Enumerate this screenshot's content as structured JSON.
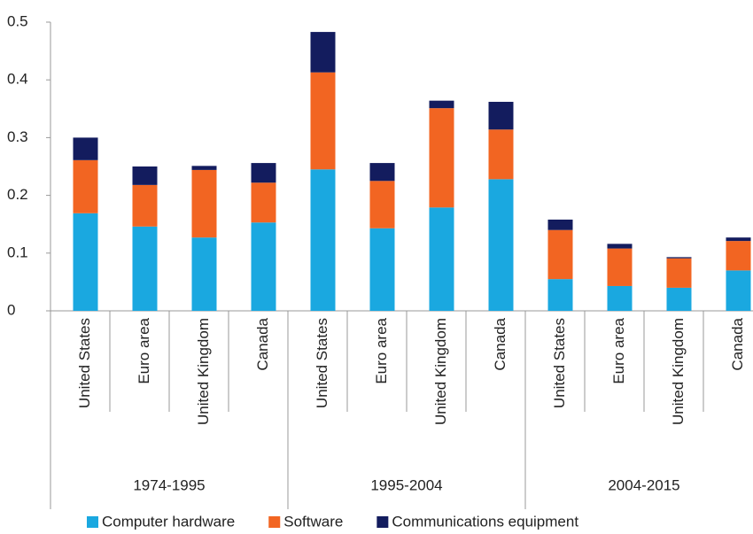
{
  "chart_data": {
    "type": "stacked-bar",
    "categories": [
      "United States",
      "Euro area",
      "United Kingdom",
      "Canada",
      "United States",
      "Euro area",
      "United Kingdom",
      "Canada",
      "United States",
      "Euro area",
      "United Kingdom",
      "Canada"
    ],
    "groups": [
      "1974-1995",
      "1995-2004",
      "2004-2015"
    ],
    "series": [
      {
        "name": "Computer hardware",
        "color": "#1aa8e0",
        "values": [
          0.169,
          0.146,
          0.127,
          0.153,
          0.245,
          0.143,
          0.179,
          0.228,
          0.055,
          0.043,
          0.04,
          0.07
        ]
      },
      {
        "name": "Software",
        "color": "#f26522",
        "values": [
          0.092,
          0.072,
          0.117,
          0.069,
          0.168,
          0.082,
          0.172,
          0.086,
          0.085,
          0.065,
          0.051,
          0.051
        ]
      },
      {
        "name": "Communications equipment",
        "color": "#131c5e",
        "values": [
          0.039,
          0.032,
          0.007,
          0.034,
          0.07,
          0.031,
          0.013,
          0.048,
          0.018,
          0.008,
          0.002,
          0.006
        ]
      }
    ],
    "ylim": [
      0,
      0.5
    ],
    "yticks": [
      0,
      0.1,
      0.2,
      0.3,
      0.4,
      0.5
    ],
    "grid": false
  }
}
